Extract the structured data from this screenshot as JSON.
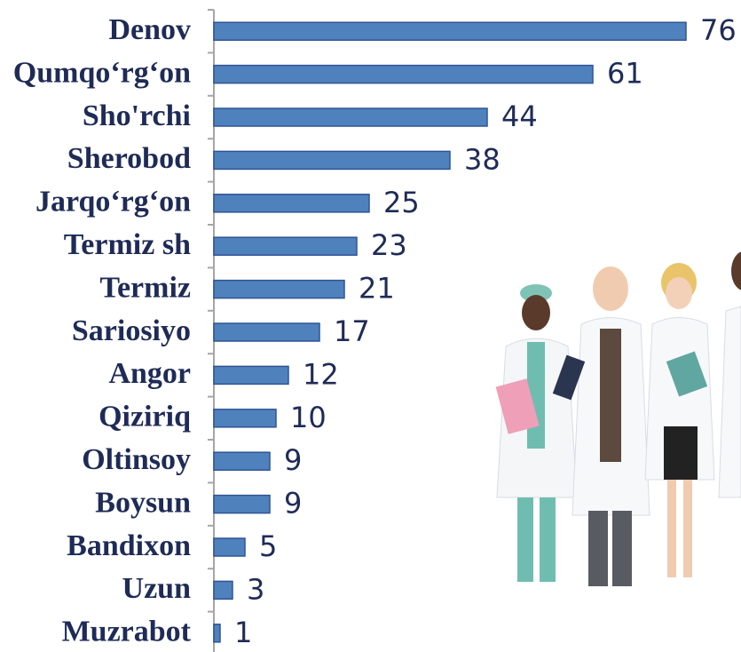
{
  "chart_data": {
    "type": "bar",
    "orientation": "horizontal",
    "categories": [
      "Denov",
      "Qumqo‘rg‘on",
      "Sho'rchi",
      "Sherobod",
      "Jarqo‘rg‘on",
      "Termiz sh",
      "Termiz",
      "Sariosiyo",
      "Angor",
      "Qiziriq",
      "Oltinsoy",
      "Boysun",
      "Bandixon",
      "Uzun",
      "Muzrabot"
    ],
    "values": [
      76,
      61,
      44,
      38,
      25,
      23,
      21,
      17,
      12,
      10,
      9,
      9,
      5,
      3,
      1
    ],
    "color": "#4f81bd",
    "xlim": [
      0,
      76
    ]
  }
}
